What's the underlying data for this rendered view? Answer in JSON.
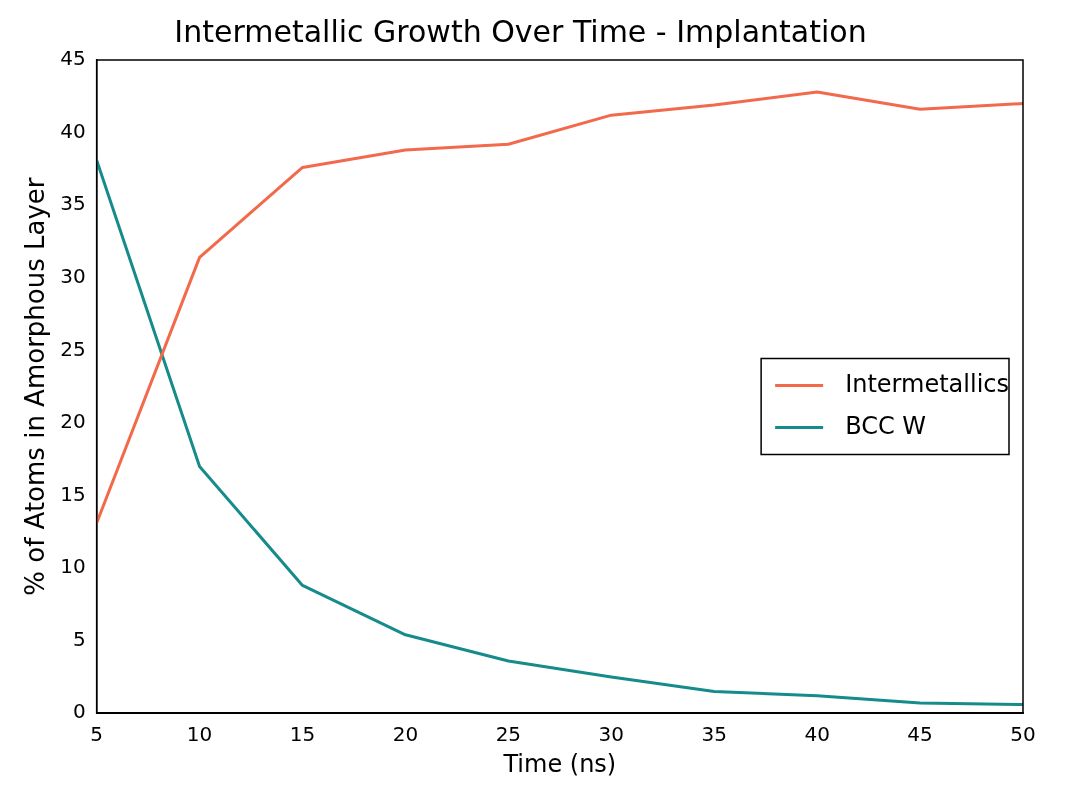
{
  "chart_data": {
    "type": "line",
    "title": "Intermetallic Growth Over Time - Implantation",
    "xlabel": "Time (ns)",
    "ylabel": "% of Atoms in Amorphous Layer",
    "x": [
      5,
      10,
      15,
      20,
      25,
      30,
      35,
      40,
      45,
      50
    ],
    "series": [
      {
        "name": "Intermetallics",
        "color": "#f26a4b",
        "values": [
          13.1,
          31.4,
          37.6,
          38.8,
          39.2,
          41.2,
          41.9,
          42.8,
          41.6,
          42.0
        ]
      },
      {
        "name": "BCC W",
        "color": "#168b8b",
        "values": [
          38.1,
          17.0,
          8.8,
          5.4,
          3.6,
          2.5,
          1.5,
          1.2,
          0.7,
          0.6
        ]
      }
    ],
    "xlim": [
      5,
      50
    ],
    "xticks": [
      5,
      10,
      15,
      20,
      25,
      30,
      35,
      40,
      45,
      50
    ],
    "ylim": [
      0,
      45
    ],
    "yticks": [
      0,
      5,
      10,
      15,
      20,
      25,
      30,
      35,
      40,
      45
    ],
    "grid": false,
    "legend": "right",
    "marker": "none",
    "line_style": "solid"
  }
}
